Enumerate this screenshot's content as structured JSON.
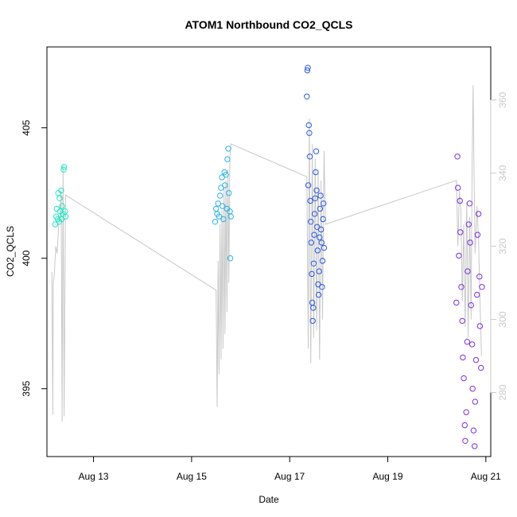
{
  "chart_data": {
    "type": "scatter",
    "title": "ATOM1 Northbound CO2_QCLS",
    "xlabel": "Date",
    "ylabel": "CO2_QCLS",
    "ylabel_right": "",
    "x_ticks": [
      "Aug 13",
      "Aug 15",
      "Aug 17",
      "Aug 19",
      "Aug 21"
    ],
    "x_tick_days": [
      13,
      15,
      17,
      19,
      21
    ],
    "xlim_days": [
      12.05,
      21.1
    ],
    "y_ticks": [
      395,
      400,
      405
    ],
    "ylim": [
      392.4,
      408.1
    ],
    "y2_ticks": [
      280,
      300,
      320,
      340,
      360
    ],
    "y2lim": [
      262.5,
      374.5
    ],
    "colors": {
      "axis": "#000000",
      "line": "#c8c8c8",
      "right_axis": "#c8c8c8",
      "frame": "#000000"
    },
    "series": [
      {
        "color": "#22e6c4",
        "points": [
          [
            12.22,
            401.3
          ],
          [
            12.24,
            401.6
          ],
          [
            12.25,
            401.9
          ],
          [
            12.27,
            401.5
          ],
          [
            12.28,
            402.5
          ],
          [
            12.3,
            401.4
          ],
          [
            12.31,
            402.3
          ],
          [
            12.32,
            401.8
          ],
          [
            12.34,
            402.6
          ],
          [
            12.35,
            401.5
          ],
          [
            12.36,
            402.0
          ],
          [
            12.38,
            401.7
          ],
          [
            12.39,
            403.4
          ],
          [
            12.4,
            403.5
          ],
          [
            12.42,
            401.8
          ],
          [
            12.43,
            401.6
          ]
        ]
      },
      {
        "color": "#26b4e8",
        "points": [
          [
            15.48,
            401.4
          ],
          [
            15.5,
            401.9
          ],
          [
            15.52,
            401.7
          ],
          [
            15.54,
            402.1
          ],
          [
            15.56,
            401.6
          ],
          [
            15.58,
            402.4
          ],
          [
            15.6,
            402.7
          ],
          [
            15.62,
            403.1
          ],
          [
            15.63,
            402.0
          ],
          [
            15.65,
            401.5
          ],
          [
            15.67,
            403.3
          ],
          [
            15.68,
            402.8
          ],
          [
            15.7,
            403.2
          ],
          [
            15.72,
            401.9
          ],
          [
            15.73,
            403.8
          ],
          [
            15.75,
            404.2
          ],
          [
            15.76,
            402.5
          ],
          [
            15.78,
            401.8
          ],
          [
            15.79,
            400.0
          ],
          [
            15.8,
            401.6
          ]
        ]
      },
      {
        "color": "#2a5ae8",
        "points": [
          [
            17.35,
            406.2
          ],
          [
            17.36,
            407.2
          ],
          [
            17.37,
            407.3
          ],
          [
            17.38,
            402.8
          ],
          [
            17.39,
            405.1
          ],
          [
            17.4,
            404.8
          ],
          [
            17.41,
            403.9
          ],
          [
            17.42,
            402.2
          ],
          [
            17.43,
            401.4
          ],
          [
            17.44,
            400.6
          ],
          [
            17.45,
            399.4
          ],
          [
            17.46,
            398.3
          ],
          [
            17.47,
            397.6
          ],
          [
            17.48,
            398.1
          ],
          [
            17.49,
            399.8
          ],
          [
            17.5,
            400.9
          ],
          [
            17.51,
            401.7
          ],
          [
            17.52,
            402.3
          ],
          [
            17.53,
            403.3
          ],
          [
            17.54,
            404.1
          ],
          [
            17.55,
            402.6
          ],
          [
            17.56,
            401.2
          ],
          [
            17.57,
            400.3
          ],
          [
            17.58,
            399.0
          ],
          [
            17.59,
            398.6
          ],
          [
            17.6,
            399.5
          ],
          [
            17.61,
            400.8
          ],
          [
            17.62,
            401.9
          ],
          [
            17.63,
            402.4
          ],
          [
            17.64,
            401.1
          ],
          [
            17.65,
            400.6
          ],
          [
            17.66,
            398.9
          ],
          [
            17.67,
            399.9
          ],
          [
            17.68,
            401.5
          ],
          [
            17.69,
            402.1
          ],
          [
            17.7,
            400.4
          ]
        ]
      },
      {
        "color": "#7a2ee6",
        "points": [
          [
            20.4,
            398.3
          ],
          [
            20.42,
            403.9
          ],
          [
            20.43,
            402.7
          ],
          [
            20.45,
            400.1
          ],
          [
            20.47,
            402.2
          ],
          [
            20.48,
            401.0
          ],
          [
            20.5,
            398.9
          ],
          [
            20.52,
            397.6
          ],
          [
            20.53,
            396.2
          ],
          [
            20.55,
            395.4
          ],
          [
            20.57,
            393.6
          ],
          [
            20.58,
            393.0
          ],
          [
            20.6,
            394.1
          ],
          [
            20.62,
            396.8
          ],
          [
            20.63,
            399.5
          ],
          [
            20.65,
            401.3
          ],
          [
            20.67,
            402.1
          ],
          [
            20.68,
            400.6
          ],
          [
            20.7,
            398.2
          ],
          [
            20.72,
            396.7
          ],
          [
            20.73,
            395.0
          ],
          [
            20.75,
            393.4
          ],
          [
            20.77,
            392.8
          ],
          [
            20.78,
            394.5
          ],
          [
            20.8,
            396.1
          ],
          [
            20.82,
            398.6
          ],
          [
            20.83,
            400.9
          ],
          [
            20.85,
            401.7
          ],
          [
            20.87,
            399.3
          ],
          [
            20.88,
            397.4
          ],
          [
            20.9,
            395.8
          ],
          [
            20.92,
            398.9
          ]
        ]
      }
    ],
    "line": {
      "axis": "right",
      "points": [
        [
          12.15,
          313.0
        ],
        [
          12.17,
          274.0
        ],
        [
          12.18,
          310.0
        ],
        [
          12.2,
          312.0
        ],
        [
          12.23,
          320.0
        ],
        [
          12.26,
          318.0
        ],
        [
          12.29,
          326.0
        ],
        [
          12.32,
          329.0
        ],
        [
          12.34,
          335.0
        ],
        [
          12.36,
          272.0
        ],
        [
          12.38,
          342.0
        ],
        [
          12.4,
          273.5
        ],
        [
          12.43,
          334.0
        ],
        [
          15.5,
          308.0
        ],
        [
          15.52,
          276.0
        ],
        [
          15.54,
          316.0
        ],
        [
          15.56,
          285.0
        ],
        [
          15.58,
          326.0
        ],
        [
          15.6,
          289.0
        ],
        [
          15.62,
          330.0
        ],
        [
          15.64,
          292.0
        ],
        [
          15.66,
          336.0
        ],
        [
          15.68,
          296.0
        ],
        [
          15.7,
          338.0
        ],
        [
          15.72,
          302.0
        ],
        [
          15.74,
          341.0
        ],
        [
          15.76,
          310.0
        ],
        [
          15.78,
          344.0
        ],
        [
          15.8,
          348.0
        ],
        [
          17.35,
          339.0
        ],
        [
          17.38,
          292.0
        ],
        [
          17.4,
          355.0
        ],
        [
          17.43,
          288.0
        ],
        [
          17.46,
          348.0
        ],
        [
          17.49,
          295.0
        ],
        [
          17.52,
          344.0
        ],
        [
          17.55,
          297.0
        ],
        [
          17.58,
          340.0
        ],
        [
          17.61,
          289.0
        ],
        [
          17.64,
          338.0
        ],
        [
          17.67,
          300.0
        ],
        [
          17.7,
          346.0
        ],
        [
          17.73,
          326.0
        ],
        [
          20.4,
          338.0
        ],
        [
          20.43,
          320.0
        ],
        [
          20.46,
          335.0
        ],
        [
          20.49,
          330.0
        ],
        [
          20.52,
          305.0
        ],
        [
          20.55,
          326.0
        ],
        [
          20.58,
          298.0
        ],
        [
          20.61,
          332.0
        ],
        [
          20.64,
          295.0
        ],
        [
          20.67,
          328.0
        ],
        [
          20.7,
          300.0
        ],
        [
          20.72,
          342.0
        ],
        [
          20.74,
          364.0
        ],
        [
          20.76,
          340.0
        ],
        [
          20.78,
          318.0
        ],
        [
          20.8,
          324.0
        ],
        [
          20.82,
          331.0
        ],
        [
          20.85,
          322.0
        ],
        [
          20.88,
          306.0
        ],
        [
          20.91,
          290.0
        ]
      ]
    }
  }
}
